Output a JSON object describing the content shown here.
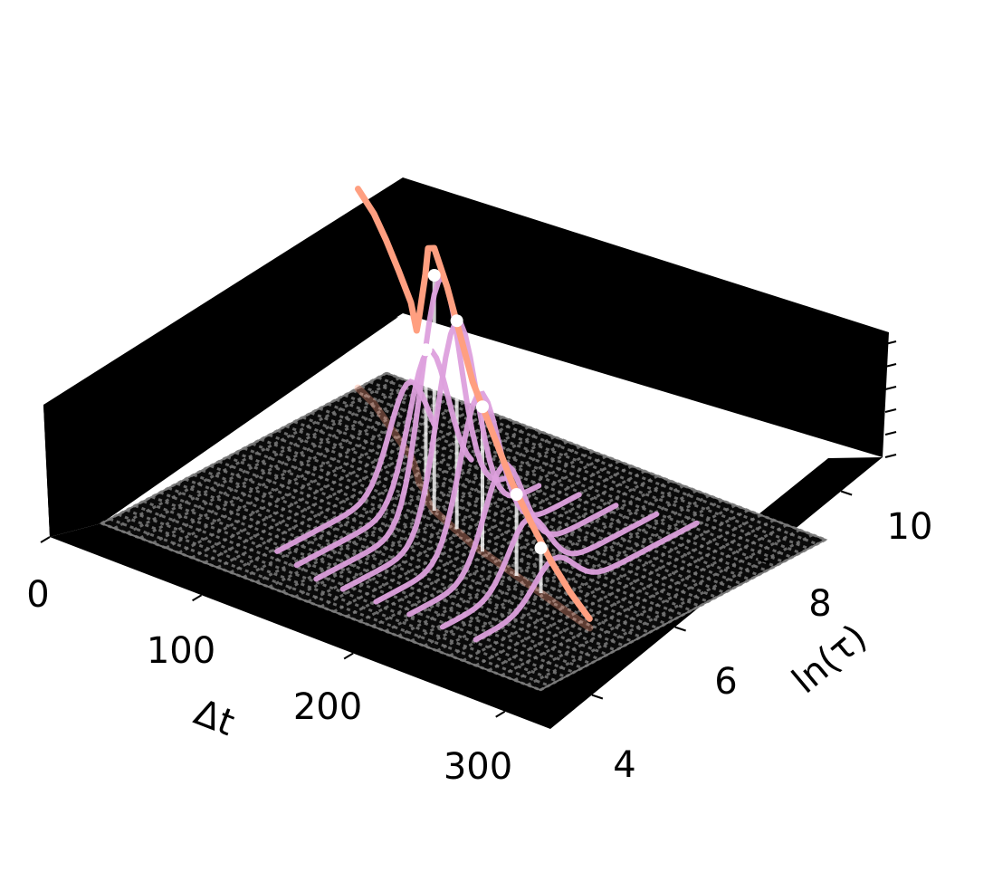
{
  "chart_data": {
    "type": "3d-line",
    "title": "",
    "xlabel": "Δt",
    "ylabel": "ln(τ)",
    "zlabel": "",
    "xlim": [
      0,
      330
    ],
    "ylim": [
      3,
      11
    ],
    "x_ticks": [
      0,
      100,
      200,
      300
    ],
    "x_tick_labels": [
      "0",
      "100",
      "200",
      "300"
    ],
    "y_ticks": [
      4,
      6,
      8,
      10
    ],
    "y_tick_labels": [
      "4",
      "6",
      "8",
      "10"
    ],
    "z_ticks": 6,
    "background": "#000000",
    "grid_floor": true,
    "colors": {
      "ridge": "#ff9f80",
      "curves": "#dda0dd",
      "markers": "#ffffff",
      "floor": "#7a7a7a"
    },
    "ridge_series": {
      "name": "",
      "points": [
        [
          0,
          10.2,
          1.1
        ],
        [
          20,
          9.9,
          1.05
        ],
        [
          40,
          9.5,
          1.0
        ],
        [
          60,
          9.1,
          0.93
        ],
        [
          80,
          8.7,
          0.85
        ],
        [
          95,
          8.3,
          0.78
        ],
        [
          105,
          8.0,
          0.92
        ],
        [
          115,
          7.8,
          1.2
        ],
        [
          125,
          7.5,
          1.4
        ],
        [
          135,
          7.3,
          1.45
        ],
        [
          150,
          7.1,
          1.3
        ],
        [
          165,
          6.9,
          1.1
        ],
        [
          180,
          6.7,
          0.9
        ],
        [
          200,
          6.5,
          0.7
        ],
        [
          220,
          6.3,
          0.5
        ],
        [
          240,
          6.1,
          0.35
        ],
        [
          260,
          5.9,
          0.22
        ],
        [
          280,
          5.7,
          0.12
        ],
        [
          300,
          5.5,
          0.05
        ]
      ]
    },
    "markers": [
      [
        118,
        7.7,
        0.8
      ],
      [
        135,
        7.3,
        1.3
      ],
      [
        160,
        7.0,
        1.15
      ],
      [
        190,
        6.6,
        0.8
      ],
      [
        225,
        6.25,
        0.45
      ],
      [
        250,
        6.0,
        0.25
      ]
    ],
    "curve_series": [
      {
        "x": 100,
        "y_range": [
          4.2,
          8.6
        ],
        "peak_y": 7.9,
        "peak_z": 0.55
      },
      {
        "x": 120,
        "y_range": [
          4.0,
          8.9
        ],
        "peak_y": 7.7,
        "peak_z": 0.8
      },
      {
        "x": 140,
        "y_range": [
          3.8,
          9.1
        ],
        "peak_y": 7.3,
        "peak_z": 1.3
      },
      {
        "x": 160,
        "y_range": [
          3.8,
          9.3
        ],
        "peak_y": 7.0,
        "peak_z": 1.15
      },
      {
        "x": 185,
        "y_range": [
          3.8,
          9.5
        ],
        "peak_y": 6.7,
        "peak_z": 0.85
      },
      {
        "x": 210,
        "y_range": [
          3.8,
          9.6
        ],
        "peak_y": 6.45,
        "peak_z": 0.55
      },
      {
        "x": 235,
        "y_range": [
          3.8,
          9.8
        ],
        "peak_y": 6.2,
        "peak_z": 0.35
      },
      {
        "x": 260,
        "y_range": [
          3.8,
          10.0
        ],
        "peak_y": 6.0,
        "peak_z": 0.22
      }
    ]
  }
}
